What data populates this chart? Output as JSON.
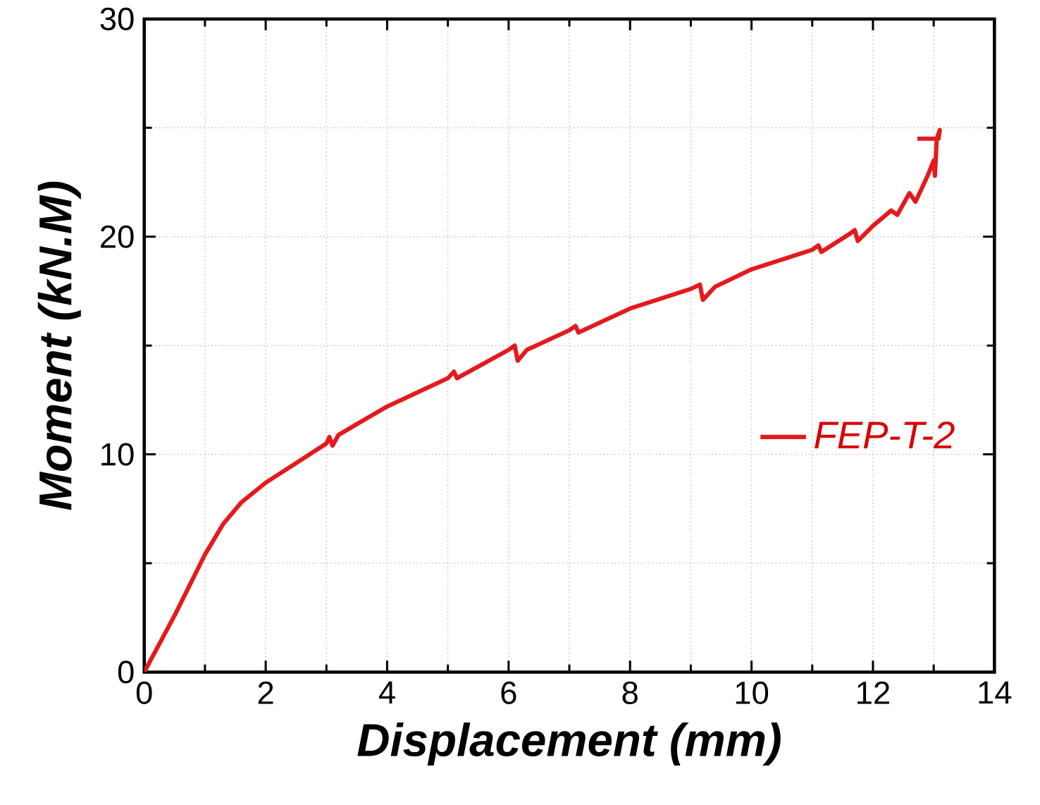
{
  "chart_data": {
    "type": "line",
    "xlabel": "Displacement (mm)",
    "ylabel": "Moment  (kN.M)",
    "xlim": [
      0,
      14
    ],
    "ylim": [
      0,
      30
    ],
    "xticks": [
      0,
      2,
      4,
      6,
      8,
      10,
      12,
      14
    ],
    "yticks": [
      0,
      10,
      20,
      30
    ],
    "grid": true,
    "legend": "right",
    "line_style": "solid",
    "marker": "none",
    "series": [
      {
        "name": "FEP-T-2",
        "color": "#e41a1c",
        "x": [
          0,
          0.5,
          1,
          1.3,
          1.6,
          2,
          2.5,
          3,
          3.05,
          3.1,
          3.2,
          4,
          5,
          5.1,
          5.15,
          6,
          6.1,
          6.15,
          6.3,
          7,
          7.1,
          7.15,
          8,
          9,
          9.15,
          9.2,
          9.4,
          10,
          11,
          11.1,
          11.15,
          11.6,
          11.7,
          11.75,
          12,
          12.3,
          12.4,
          12.6,
          12.7,
          12.9,
          13.0,
          13.02,
          13.05,
          13.1,
          13.08,
          12.73
        ],
        "values": [
          0,
          2.6,
          5.4,
          6.8,
          7.8,
          8.7,
          9.6,
          10.5,
          10.8,
          10.4,
          10.9,
          12.2,
          13.5,
          13.8,
          13.5,
          14.8,
          15,
          14.3,
          14.8,
          15.7,
          15.9,
          15.6,
          16.7,
          17.6,
          17.8,
          17.1,
          17.7,
          18.5,
          19.4,
          19.6,
          19.3,
          20.1,
          20.3,
          19.8,
          20.5,
          21.2,
          21.0,
          22.0,
          21.6,
          22.8,
          23.5,
          22.8,
          24.5,
          24.9,
          24.5,
          24.5
        ]
      }
    ]
  }
}
